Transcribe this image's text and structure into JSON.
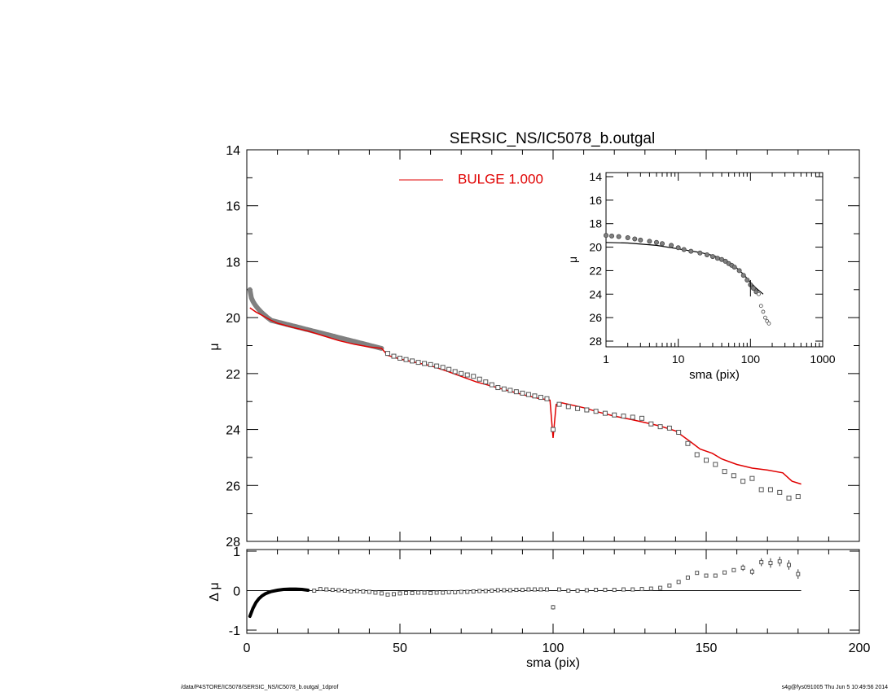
{
  "footer": {
    "path": "/data/P4STORE/IC5078/SERSIC_NS/IC5078_b.outgal_1dprof",
    "stamp": "s4g@fys091005  Thu Jun  5 10:49:56 2014"
  },
  "colors": {
    "model": "#e00000",
    "data": "#808080",
    "inner_data": "#000000",
    "axes": "#000000"
  },
  "chart_data": [
    {
      "id": "main",
      "type": "scatter",
      "title": "SERSIC_NS/IC5078_b.outgal",
      "xlabel": "",
      "ylabel": "μ",
      "xlim": [
        0,
        200
      ],
      "ylim": [
        28,
        14
      ],
      "y_inverted": true,
      "yticks": [
        14,
        16,
        18,
        20,
        22,
        24,
        26,
        28
      ],
      "legend": {
        "location": "top-center",
        "entries": [
          {
            "label": "BULGE  1.000",
            "color": "#e00000"
          }
        ]
      },
      "series": [
        {
          "name": "BULGE  1.000",
          "kind": "line",
          "x": [
            1,
            3,
            5,
            8,
            10,
            15,
            20,
            25,
            30,
            35,
            40,
            44,
            46,
            50,
            55,
            60,
            65,
            70,
            75,
            80,
            85,
            90,
            95,
            99,
            100,
            101,
            103,
            110,
            115,
            120,
            125,
            130,
            135,
            140,
            145,
            148,
            152,
            155,
            160,
            165,
            170,
            175,
            178,
            181
          ],
          "y": [
            19.65,
            19.8,
            19.92,
            20.1,
            20.2,
            20.35,
            20.48,
            20.65,
            20.82,
            20.95,
            21.05,
            21.1,
            21.35,
            21.48,
            21.6,
            21.72,
            21.9,
            22.1,
            22.3,
            22.45,
            22.6,
            22.75,
            22.88,
            22.95,
            24.3,
            23.1,
            23.05,
            23.22,
            23.38,
            23.52,
            23.63,
            23.75,
            23.88,
            24.05,
            24.45,
            24.7,
            24.85,
            25.05,
            25.25,
            25.38,
            25.45,
            25.55,
            25.85,
            25.95
          ]
        },
        {
          "name": "",
          "kind": "points",
          "marker": "square",
          "x": [
            46,
            48,
            50,
            52,
            54,
            56,
            58,
            60,
            62,
            64,
            66,
            68,
            70,
            72,
            74,
            76,
            78,
            80,
            82,
            84,
            86,
            88,
            90,
            92,
            94,
            96,
            98,
            100,
            102,
            105,
            108,
            111,
            114,
            117,
            120,
            123,
            126,
            129,
            132,
            135,
            138,
            141,
            144,
            147,
            150,
            153,
            156,
            159,
            162,
            165,
            168,
            171,
            174,
            177,
            180
          ],
          "y": [
            21.28,
            21.38,
            21.45,
            21.5,
            21.55,
            21.6,
            21.64,
            21.68,
            21.73,
            21.78,
            21.85,
            21.93,
            22.0,
            22.05,
            22.1,
            22.2,
            22.3,
            22.4,
            22.5,
            22.55,
            22.6,
            22.65,
            22.7,
            22.75,
            22.8,
            22.85,
            22.9,
            24.0,
            23.1,
            23.18,
            23.25,
            23.3,
            23.35,
            23.42,
            23.48,
            23.52,
            23.56,
            23.6,
            23.8,
            23.9,
            23.95,
            24.1,
            24.5,
            24.9,
            25.1,
            25.25,
            25.5,
            25.65,
            25.85,
            25.75,
            26.15,
            26.15,
            26.25,
            26.45,
            26.4
          ]
        }
      ]
    },
    {
      "id": "residual",
      "type": "scatter",
      "title": "",
      "xlabel": "sma (pix)",
      "ylabel": "Δ μ",
      "xlim": [
        0,
        200
      ],
      "ylim": [
        -1,
        1
      ],
      "xticks": [
        0,
        50,
        100,
        150,
        200
      ],
      "yticks": [
        -1,
        0,
        1
      ],
      "series": [
        {
          "name": "",
          "kind": "points",
          "marker": "square",
          "x": [
            1,
            2,
            3,
            4,
            5,
            6,
            7,
            8,
            10,
            12,
            14,
            16,
            18,
            20,
            22,
            24,
            26,
            28,
            30,
            32,
            34,
            36,
            38,
            40,
            42,
            44,
            46,
            48,
            50,
            52,
            54,
            56,
            58,
            60,
            62,
            64,
            66,
            68,
            70,
            72,
            74,
            76,
            78,
            80,
            82,
            84,
            86,
            88,
            90,
            92,
            94,
            96,
            98,
            100,
            102,
            105,
            108,
            111,
            114,
            117,
            120,
            123,
            126,
            129,
            132,
            135,
            138,
            141,
            144,
            147,
            150,
            153,
            156,
            159,
            162,
            165,
            168,
            171,
            174,
            177,
            180
          ],
          "y": [
            -0.65,
            -0.45,
            -0.3,
            -0.2,
            -0.13,
            -0.08,
            -0.05,
            -0.02,
            0.01,
            0.03,
            0.04,
            0.04,
            0.03,
            0.01,
            0.0,
            0.04,
            0.03,
            0.02,
            0.01,
            0.0,
            -0.02,
            -0.01,
            -0.02,
            -0.03,
            -0.05,
            -0.07,
            -0.1,
            -0.09,
            -0.07,
            -0.06,
            -0.06,
            -0.05,
            -0.05,
            -0.06,
            -0.05,
            -0.05,
            -0.04,
            -0.04,
            -0.03,
            -0.03,
            -0.02,
            -0.01,
            -0.01,
            0.0,
            0.01,
            0.01,
            0.01,
            0.02,
            0.02,
            0.03,
            0.03,
            0.03,
            0.03,
            -0.42,
            0.03,
            0.0,
            0.0,
            0.01,
            0.02,
            0.02,
            0.02,
            0.03,
            0.03,
            0.04,
            0.05,
            0.07,
            0.13,
            0.22,
            0.33,
            0.45,
            0.38,
            0.38,
            0.46,
            0.52,
            0.58,
            0.48,
            0.72,
            0.7,
            0.74,
            0.65,
            0.42
          ],
          "errors": [
            0,
            0,
            0,
            0,
            0,
            0,
            0,
            0,
            0,
            0,
            0,
            0,
            0,
            0,
            0,
            0,
            0,
            0,
            0,
            0,
            0,
            0,
            0,
            0,
            0,
            0,
            0,
            0,
            0,
            0,
            0,
            0,
            0,
            0,
            0,
            0,
            0,
            0,
            0,
            0,
            0,
            0,
            0,
            0,
            0,
            0,
            0,
            0,
            0,
            0,
            0,
            0,
            0,
            0.06,
            0,
            0,
            0,
            0,
            0,
            0,
            0,
            0,
            0,
            0,
            0,
            0,
            0,
            0,
            0,
            0,
            0,
            0,
            0,
            0,
            0.08,
            0.08,
            0.1,
            0.12,
            0.12,
            0.12,
            0.12
          ]
        }
      ],
      "reference_line": 0
    },
    {
      "id": "inset",
      "type": "scatter",
      "title": "",
      "xlabel": "sma (pix)",
      "ylabel": "μ",
      "xscale": "log",
      "xlim": [
        1,
        1000
      ],
      "ylim": [
        28,
        14
      ],
      "y_inverted": true,
      "xticks": [
        1,
        10,
        100,
        1000
      ],
      "yticks": [
        14,
        16,
        18,
        20,
        22,
        24,
        26,
        28
      ],
      "series": [
        {
          "name": "",
          "kind": "line",
          "x": [
            1,
            2,
            5,
            10,
            20,
            30,
            45,
            60,
            80,
            100,
            120,
            150
          ],
          "y": [
            19.6,
            19.65,
            19.85,
            20.15,
            20.45,
            20.7,
            21.1,
            21.6,
            22.3,
            23.0,
            23.5,
            24.0
          ]
        },
        {
          "name": "",
          "kind": "points",
          "marker": "circle",
          "x": [
            1,
            1.2,
            1.5,
            2,
            2.5,
            3,
            4,
            5,
            6,
            8,
            10,
            12,
            15,
            20,
            25,
            30,
            35,
            40,
            45,
            50,
            55,
            60,
            70,
            80,
            90,
            100,
            110,
            120,
            130,
            140,
            150,
            160,
            170,
            180
          ],
          "y": [
            19.0,
            19.05,
            19.1,
            19.2,
            19.3,
            19.4,
            19.5,
            19.6,
            19.7,
            19.85,
            20.05,
            20.2,
            20.35,
            20.5,
            20.65,
            20.8,
            20.95,
            21.05,
            21.2,
            21.4,
            21.55,
            21.7,
            22.0,
            22.4,
            22.8,
            23.2,
            23.5,
            23.8,
            24.0,
            25.0,
            25.5,
            26.0,
            26.3,
            26.5
          ]
        }
      ]
    }
  ]
}
